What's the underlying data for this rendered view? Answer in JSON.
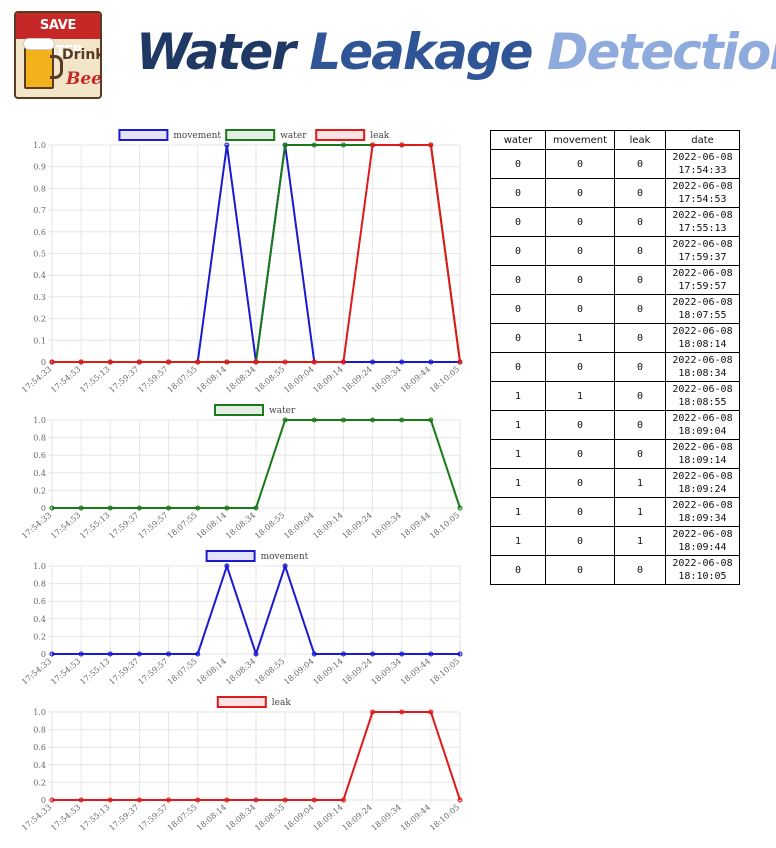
{
  "header": {
    "logo": {
      "top_text": "SAVE WATER",
      "drink_text": "Drink",
      "beer_text": "Beer!"
    },
    "title_words": [
      "Water",
      "Leakage",
      "Detection"
    ]
  },
  "colors": {
    "movement": "#1a1ad0",
    "water": "#1a7a1a",
    "leak": "#e01a1a"
  },
  "table": {
    "headers": [
      "water",
      "movement",
      "leak",
      "date"
    ],
    "rows": [
      {
        "water": "0",
        "movement": "0",
        "leak": "0",
        "date": "2022-06-08",
        "time": "17:54:33"
      },
      {
        "water": "0",
        "movement": "0",
        "leak": "0",
        "date": "2022-06-08",
        "time": "17:54:53"
      },
      {
        "water": "0",
        "movement": "0",
        "leak": "0",
        "date": "2022-06-08",
        "time": "17:55:13"
      },
      {
        "water": "0",
        "movement": "0",
        "leak": "0",
        "date": "2022-06-08",
        "time": "17:59:37"
      },
      {
        "water": "0",
        "movement": "0",
        "leak": "0",
        "date": "2022-06-08",
        "time": "17:59:57"
      },
      {
        "water": "0",
        "movement": "0",
        "leak": "0",
        "date": "2022-06-08",
        "time": "18:07:55"
      },
      {
        "water": "0",
        "movement": "1",
        "leak": "0",
        "date": "2022-06-08",
        "time": "18:08:14"
      },
      {
        "water": "0",
        "movement": "0",
        "leak": "0",
        "date": "2022-06-08",
        "time": "18:08:34"
      },
      {
        "water": "1",
        "movement": "1",
        "leak": "0",
        "date": "2022-06-08",
        "time": "18:08:55"
      },
      {
        "water": "1",
        "movement": "0",
        "leak": "0",
        "date": "2022-06-08",
        "time": "18:09:04"
      },
      {
        "water": "1",
        "movement": "0",
        "leak": "0",
        "date": "2022-06-08",
        "time": "18:09:14"
      },
      {
        "water": "1",
        "movement": "0",
        "leak": "1",
        "date": "2022-06-08",
        "time": "18:09:24"
      },
      {
        "water": "1",
        "movement": "0",
        "leak": "1",
        "date": "2022-06-08",
        "time": "18:09:34"
      },
      {
        "water": "1",
        "movement": "0",
        "leak": "1",
        "date": "2022-06-08",
        "time": "18:09:44"
      },
      {
        "water": "0",
        "movement": "0",
        "leak": "0",
        "date": "2022-06-08",
        "time": "18:10:05"
      }
    ]
  },
  "chart_data": [
    {
      "type": "line",
      "x": [
        "17:54:33",
        "17:54:53",
        "17:55:13",
        "17:59:37",
        "17:59:57",
        "18:07:55",
        "18:08:14",
        "18:08:34",
        "18:08:55",
        "18:09:04",
        "18:09:14",
        "18:09:24",
        "18:09:34",
        "18:09:44",
        "18:10:05"
      ],
      "ylim": [
        0,
        1
      ],
      "yticks": [
        "0",
        "0.1",
        "0.2",
        "0.3",
        "0.4",
        "0.5",
        "0.6",
        "0.7",
        "0.8",
        "0.9",
        "1.0"
      ],
      "grid": true,
      "legend": "top",
      "series": [
        {
          "name": "movement",
          "color": "#1a1ad0",
          "values": [
            0,
            0,
            0,
            0,
            0,
            0,
            1,
            0,
            1,
            0,
            0,
            0,
            0,
            0,
            0
          ]
        },
        {
          "name": "water",
          "color": "#1a7a1a",
          "values": [
            0,
            0,
            0,
            0,
            0,
            0,
            0,
            0,
            1,
            1,
            1,
            1,
            1,
            1,
            0
          ]
        },
        {
          "name": "leak",
          "color": "#e01a1a",
          "values": [
            0,
            0,
            0,
            0,
            0,
            0,
            0,
            0,
            0,
            0,
            0,
            1,
            1,
            1,
            0
          ]
        }
      ]
    },
    {
      "type": "line",
      "x": [
        "17:54:33",
        "17:54:53",
        "17:55:13",
        "17:59:37",
        "17:59:57",
        "18:07:55",
        "18:08:14",
        "18:08:34",
        "18:08:55",
        "18:09:04",
        "18:09:14",
        "18:09:24",
        "18:09:34",
        "18:09:44",
        "18:10:05"
      ],
      "ylim": [
        0,
        1
      ],
      "yticks": [
        "0",
        "0.2",
        "0.4",
        "0.6",
        "0.8",
        "1.0"
      ],
      "grid": true,
      "legend": "top",
      "series": [
        {
          "name": "water",
          "color": "#1a7a1a",
          "values": [
            0,
            0,
            0,
            0,
            0,
            0,
            0,
            0,
            1,
            1,
            1,
            1,
            1,
            1,
            0
          ]
        }
      ]
    },
    {
      "type": "line",
      "x": [
        "17:54:33",
        "17:54:53",
        "17:55:13",
        "17:59:37",
        "17:59:57",
        "18:07:55",
        "18:08:14",
        "18:08:34",
        "18:08:55",
        "18:09:04",
        "18:09:14",
        "18:09:24",
        "18:09:34",
        "18:09:44",
        "18:10:05"
      ],
      "ylim": [
        0,
        1
      ],
      "yticks": [
        "0",
        "0.2",
        "0.4",
        "0.6",
        "0.8",
        "1.0"
      ],
      "grid": true,
      "legend": "top",
      "series": [
        {
          "name": "movement",
          "color": "#1a1ad0",
          "values": [
            0,
            0,
            0,
            0,
            0,
            0,
            1,
            0,
            1,
            0,
            0,
            0,
            0,
            0,
            0
          ]
        }
      ]
    },
    {
      "type": "line",
      "x": [
        "17:54:33",
        "17:54:53",
        "17:55:13",
        "17:59:37",
        "17:59:57",
        "18:07:55",
        "18:08:14",
        "18:08:34",
        "18:08:55",
        "18:09:04",
        "18:09:14",
        "18:09:24",
        "18:09:34",
        "18:09:44",
        "18:10:05"
      ],
      "ylim": [
        0,
        1
      ],
      "yticks": [
        "0",
        "0.2",
        "0.4",
        "0.6",
        "0.8",
        "1.0"
      ],
      "grid": true,
      "legend": "top",
      "series": [
        {
          "name": "leak",
          "color": "#e01a1a",
          "values": [
            0,
            0,
            0,
            0,
            0,
            0,
            0,
            0,
            0,
            0,
            0,
            1,
            1,
            1,
            0
          ]
        }
      ]
    }
  ]
}
